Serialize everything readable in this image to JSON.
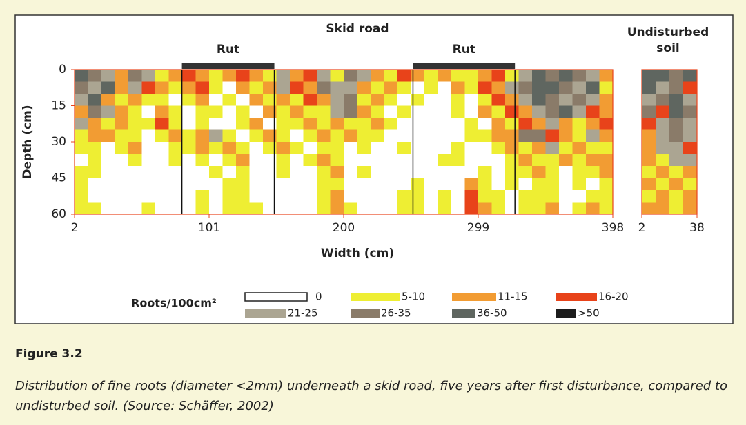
{
  "chart_data": {
    "type": "heatmap",
    "x_label": "Width (cm)",
    "y_label": "Depth (cm)",
    "panels": [
      {
        "title": [
          "Skid road"
        ],
        "xlim": [
          2,
          398
        ],
        "ylim": [
          0,
          60
        ],
        "xticks": [
          2,
          101,
          200,
          299,
          398
        ],
        "yticks": [
          0,
          15,
          30,
          45,
          60
        ],
        "annotations": [
          {
            "text": "Rut",
            "xlim": [
              81,
              149
            ]
          },
          {
            "text": "Rut",
            "xlim": [
              251,
              326
            ]
          }
        ],
        "rows": [
          [
            6,
            5,
            4,
            2,
            5,
            4,
            1,
            2,
            3,
            2,
            1,
            2,
            3,
            2,
            1,
            4,
            2,
            3,
            4,
            1,
            5,
            4,
            2,
            1,
            3,
            2,
            1,
            2,
            1,
            1,
            2,
            3,
            1,
            4,
            6,
            5,
            6,
            5,
            4,
            2
          ],
          [
            5,
            4,
            6,
            2,
            4,
            3,
            2,
            1,
            2,
            3,
            1,
            0,
            2,
            1,
            2,
            4,
            3,
            2,
            5,
            4,
            4,
            2,
            1,
            2,
            1,
            0,
            1,
            0,
            2,
            1,
            3,
            2,
            4,
            5,
            6,
            6,
            5,
            4,
            6,
            1
          ],
          [
            4,
            6,
            2,
            1,
            2,
            1,
            1,
            0,
            1,
            2,
            0,
            1,
            0,
            2,
            1,
            2,
            1,
            3,
            2,
            4,
            5,
            1,
            2,
            1,
            0,
            1,
            0,
            0,
            1,
            0,
            1,
            3,
            2,
            4,
            6,
            5,
            4,
            5,
            4,
            2
          ],
          [
            2,
            5,
            4,
            2,
            1,
            0,
            2,
            1,
            0,
            1,
            1,
            0,
            1,
            0,
            2,
            1,
            2,
            1,
            1,
            4,
            5,
            2,
            1,
            0,
            1,
            0,
            0,
            0,
            1,
            0,
            2,
            1,
            3,
            2,
            4,
            5,
            6,
            4,
            3,
            2
          ],
          [
            4,
            2,
            1,
            2,
            1,
            1,
            3,
            1,
            0,
            1,
            0,
            0,
            1,
            2,
            0,
            1,
            1,
            2,
            1,
            2,
            1,
            1,
            2,
            1,
            0,
            0,
            0,
            0,
            0,
            1,
            0,
            2,
            1,
            3,
            2,
            4,
            2,
            1,
            2,
            3
          ],
          [
            1,
            2,
            2,
            1,
            1,
            0,
            1,
            2,
            1,
            2,
            4,
            1,
            0,
            1,
            2,
            1,
            0,
            1,
            2,
            1,
            2,
            1,
            1,
            0,
            0,
            0,
            0,
            0,
            0,
            1,
            1,
            2,
            2,
            5,
            5,
            3,
            2,
            1,
            4,
            2
          ],
          [
            1,
            1,
            0,
            1,
            2,
            0,
            0,
            1,
            1,
            2,
            1,
            2,
            1,
            0,
            1,
            2,
            1,
            0,
            1,
            1,
            0,
            1,
            0,
            0,
            1,
            0,
            0,
            0,
            1,
            0,
            0,
            1,
            2,
            1,
            2,
            4,
            1,
            2,
            1,
            1
          ],
          [
            0,
            1,
            0,
            0,
            1,
            0,
            0,
            1,
            0,
            1,
            0,
            1,
            2,
            0,
            0,
            1,
            0,
            1,
            2,
            1,
            0,
            0,
            0,
            0,
            0,
            0,
            0,
            1,
            1,
            0,
            0,
            0,
            1,
            2,
            1,
            1,
            2,
            1,
            2,
            2
          ],
          [
            1,
            1,
            0,
            0,
            0,
            0,
            0,
            0,
            0,
            0,
            1,
            0,
            1,
            0,
            0,
            1,
            0,
            0,
            1,
            2,
            0,
            1,
            0,
            0,
            0,
            0,
            0,
            0,
            0,
            0,
            1,
            0,
            1,
            1,
            2,
            1,
            0,
            1,
            1,
            2
          ],
          [
            1,
            0,
            0,
            0,
            0,
            0,
            0,
            0,
            0,
            0,
            0,
            1,
            1,
            0,
            0,
            0,
            0,
            0,
            1,
            1,
            0,
            0,
            0,
            0,
            0,
            1,
            0,
            0,
            0,
            2,
            1,
            0,
            1,
            0,
            1,
            1,
            0,
            1,
            0,
            1
          ],
          [
            1,
            0,
            0,
            0,
            0,
            0,
            0,
            0,
            0,
            1,
            0,
            1,
            1,
            0,
            0,
            0,
            0,
            0,
            1,
            2,
            0,
            0,
            0,
            0,
            1,
            1,
            0,
            1,
            0,
            3,
            1,
            1,
            0,
            1,
            1,
            1,
            0,
            0,
            1,
            1
          ],
          [
            1,
            1,
            0,
            0,
            0,
            1,
            0,
            0,
            0,
            1,
            0,
            1,
            1,
            1,
            0,
            0,
            0,
            0,
            1,
            2,
            1,
            0,
            0,
            0,
            1,
            1,
            0,
            1,
            0,
            3,
            2,
            1,
            0,
            1,
            1,
            2,
            0,
            1,
            2,
            1
          ]
        ]
      },
      {
        "title": [
          "Undisturbed",
          "soil"
        ],
        "xlim": [
          2,
          38
        ],
        "ylim": [
          0,
          60
        ],
        "xticks": [
          2,
          38
        ],
        "rows": [
          [
            6,
            6,
            5,
            6
          ],
          [
            6,
            4,
            5,
            3
          ],
          [
            4,
            5,
            6,
            4
          ],
          [
            5,
            3,
            6,
            5
          ],
          [
            3,
            4,
            5,
            4
          ],
          [
            2,
            4,
            5,
            4
          ],
          [
            2,
            4,
            4,
            3
          ],
          [
            2,
            1,
            4,
            4
          ],
          [
            1,
            2,
            1,
            2
          ],
          [
            2,
            1,
            2,
            1
          ],
          [
            1,
            2,
            1,
            2
          ],
          [
            2,
            2,
            1,
            2
          ]
        ]
      }
    ],
    "legend": {
      "title": "Roots/100cm²",
      "classes": [
        {
          "label": "0",
          "color": "#ffffff"
        },
        {
          "label": "5-10",
          "color": "#eeee33"
        },
        {
          "label": "11-15",
          "color": "#f29c33"
        },
        {
          "label": "16-20",
          "color": "#e8431a"
        },
        {
          "label": "21-25",
          "color": "#aba592"
        },
        {
          "label": "26-35",
          "color": "#8a7b69"
        },
        {
          "label": "36-50",
          "color": "#5f6660"
        },
        {
          "label": ">50",
          "color": "#1c1c1c"
        }
      ]
    }
  },
  "figure": {
    "label": "Figure 3.2",
    "caption": "Distribution of fine roots (diameter <2mm) underneath a skid road, five years after first disturbance, compared to undisturbed soil. (Source: Schäffer, 2002)"
  }
}
